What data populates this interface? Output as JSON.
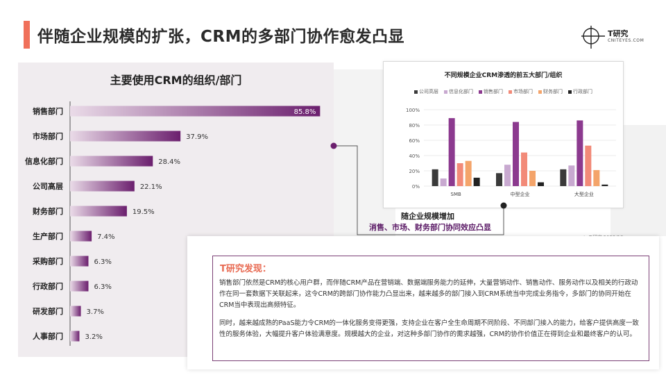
{
  "header": {
    "title": "伴随企业规模的扩张，CRM的多部门协作愈发凸显",
    "logo_cn": "T研究",
    "logo_en": "CNITEYES.COM"
  },
  "colors": {
    "accent": "#f0705a",
    "purple_dark": "#6b1f6e",
    "purple_light": "#e6d3e4"
  },
  "chart_data": [
    {
      "type": "bar",
      "orientation": "horizontal",
      "title": "主要使用CRM的组织/部门",
      "categories": [
        "销售部门",
        "市场部门",
        "信息化部门",
        "公司高层",
        "财务部门",
        "生产部门",
        "采购部门",
        "行政部门",
        "研发部门",
        "人事部门"
      ],
      "values": [
        85.8,
        37.9,
        28.4,
        22.1,
        19.5,
        7.4,
        6.3,
        6.3,
        3.7,
        3.2
      ],
      "value_labels": [
        "85.8%",
        "37.9%",
        "28.4%",
        "22.1%",
        "19.5%",
        "7.4%",
        "6.3%",
        "6.3%",
        "3.7%",
        "3.2%"
      ],
      "xlim": [
        0,
        100
      ]
    },
    {
      "type": "bar",
      "title": "不同规模企业CRM渗透的前五大部门/组织",
      "categories": [
        "SMB",
        "中型企业",
        "大型企业"
      ],
      "series": [
        {
          "name": "公司高层",
          "color": "#3a3a3a",
          "values": [
            22,
            17,
            22
          ]
        },
        {
          "name": "信息化部门",
          "color": "#c8a9d0",
          "values": [
            10,
            28,
            27
          ]
        },
        {
          "name": "销售部门",
          "color": "#8c3a8f",
          "values": [
            89,
            84,
            86
          ]
        },
        {
          "name": "市场部门",
          "color": "#f28a78",
          "values": [
            30,
            44,
            53
          ]
        },
        {
          "name": "财务部门",
          "color": "#f4a46a",
          "values": [
            33,
            20,
            21
          ]
        },
        {
          "name": "行政部门",
          "color": "#222222",
          "values": [
            11,
            5,
            2
          ]
        }
      ],
      "yticks": [
        "0%",
        "20%",
        "40%",
        "60%",
        "80%",
        "100%"
      ],
      "ylim": [
        0,
        100
      ],
      "grid": true,
      "legend": "top"
    }
  ],
  "callout": {
    "line1": "随企业规模增加",
    "line2": "消售、市场、财务部门协同效应凸显"
  },
  "source": "source：  T研究 2022/12",
  "findings": {
    "heading": "T研究发现：",
    "p1": "销售部门依然是CRM的核心用户群，而伴随CRM产品在营销端、数据端服务能力的延伸，大量营销动作、销售动作、服务动作以及相关的行政动作在同一套数据下关联起来，这令CRM的跨部门协作能力凸显出来，越来越多的部门接入到CRM系统当中完成业务指令，多部门的协同开始在CRM当中表现出高频特征。",
    "p2": "同时，越来越成熟的PaaS能力令CRM的一体化服务变得更强，支持企业在客户全生命周期不同阶段、不同部门接入的能力，给客户提供高度一致性的服务体验，大幅提升客户体验满意度。规模越大的企业，对这种多部门协作的需求越强，CRM的协作价值正在得到企业和最终客户的认可。"
  }
}
